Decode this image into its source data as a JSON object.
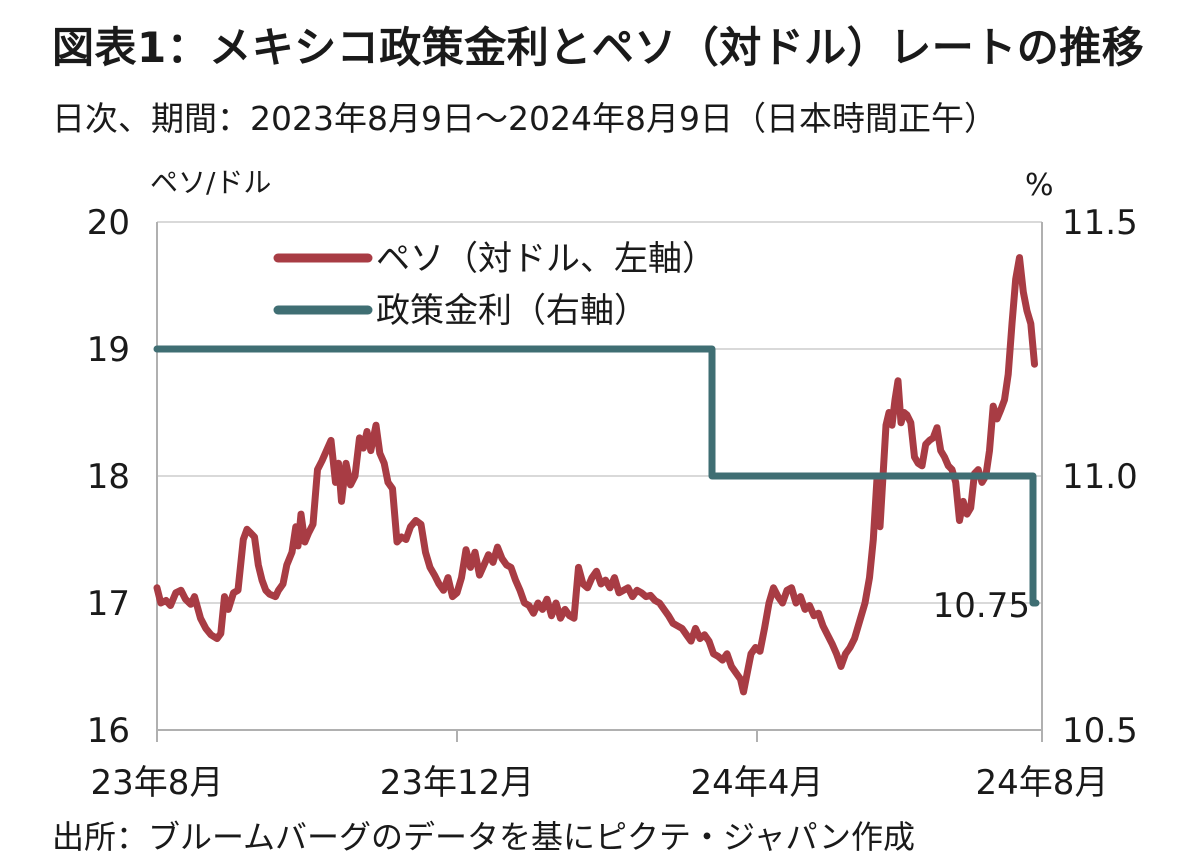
{
  "header": {
    "title": "図表1：メキシコ政策金利とペソ（対ドル）レートの推移",
    "subtitle": "日次、期間：2023年8月9日～2024年8月9日（日本時間正午）"
  },
  "footer": {
    "source": "出所：ブルームバーグのデータを基にピクテ・ジャパン作成"
  },
  "colors": {
    "peso": "#a83c44",
    "rate": "#3f6e73",
    "grid": "#d9d9d9",
    "axis": "#b0b0b0"
  },
  "chart_data": {
    "type": "line",
    "left_axis": {
      "unit": "ペソ/ドル",
      "range": [
        16,
        20
      ],
      "ticks": [
        "16",
        "17",
        "18",
        "19",
        "20"
      ]
    },
    "right_axis": {
      "unit": "%",
      "range": [
        10.5,
        11.5
      ],
      "ticks": [
        "10.5",
        "11.0",
        "11.5"
      ]
    },
    "x_axis": {
      "ticks": [
        "23年8月",
        "23年12月",
        "24年4月",
        "24年8月"
      ]
    },
    "legend": {
      "position": "top-left",
      "entries": [
        "ペソ（対ドル、左軸）",
        "政策金利（右軸）"
      ]
    },
    "grid": true,
    "annotations": [
      "10.75"
    ],
    "series": [
      {
        "name": "ペソ（対ドル、左軸）",
        "axis": "left",
        "x_unit": "months from 2023年8月9日",
        "points": [
          [
            0.0,
            17.12
          ],
          [
            0.05,
            17.0
          ],
          [
            0.12,
            17.02
          ],
          [
            0.18,
            16.98
          ],
          [
            0.25,
            17.08
          ],
          [
            0.32,
            17.1
          ],
          [
            0.38,
            17.03
          ],
          [
            0.45,
            16.99
          ],
          [
            0.5,
            17.05
          ],
          [
            0.58,
            16.88
          ],
          [
            0.65,
            16.8
          ],
          [
            0.72,
            16.75
          ],
          [
            0.8,
            16.72
          ],
          [
            0.85,
            16.76
          ],
          [
            0.9,
            17.05
          ],
          [
            0.95,
            16.95
          ],
          [
            1.02,
            17.08
          ],
          [
            1.08,
            17.1
          ],
          [
            1.15,
            17.5
          ],
          [
            1.2,
            17.58
          ],
          [
            1.25,
            17.55
          ],
          [
            1.3,
            17.52
          ],
          [
            1.35,
            17.3
          ],
          [
            1.4,
            17.18
          ],
          [
            1.45,
            17.1
          ],
          [
            1.5,
            17.07
          ],
          [
            1.58,
            17.05
          ],
          [
            1.62,
            17.1
          ],
          [
            1.68,
            17.15
          ],
          [
            1.73,
            17.3
          ],
          [
            1.8,
            17.4
          ],
          [
            1.85,
            17.6
          ],
          [
            1.88,
            17.45
          ],
          [
            1.92,
            17.7
          ],
          [
            1.97,
            17.48
          ],
          [
            2.02,
            17.55
          ],
          [
            2.08,
            17.62
          ],
          [
            2.14,
            18.05
          ],
          [
            2.2,
            18.12
          ],
          [
            2.26,
            18.2
          ],
          [
            2.32,
            18.28
          ],
          [
            2.38,
            17.95
          ],
          [
            2.42,
            18.1
          ],
          [
            2.46,
            17.8
          ],
          [
            2.52,
            18.1
          ],
          [
            2.58,
            17.93
          ],
          [
            2.64,
            18.0
          ],
          [
            2.7,
            18.3
          ],
          [
            2.75,
            18.22
          ],
          [
            2.8,
            18.35
          ],
          [
            2.85,
            18.2
          ],
          [
            2.92,
            18.4
          ],
          [
            2.97,
            18.18
          ],
          [
            3.03,
            18.1
          ],
          [
            3.08,
            17.95
          ],
          [
            3.14,
            17.9
          ],
          [
            3.2,
            17.48
          ],
          [
            3.26,
            17.52
          ],
          [
            3.32,
            17.5
          ],
          [
            3.38,
            17.6
          ],
          [
            3.45,
            17.65
          ],
          [
            3.52,
            17.62
          ],
          [
            3.58,
            17.4
          ],
          [
            3.64,
            17.28
          ],
          [
            3.7,
            17.22
          ],
          [
            3.76,
            17.15
          ],
          [
            3.82,
            17.1
          ],
          [
            3.88,
            17.2
          ],
          [
            3.94,
            17.05
          ],
          [
            4.0,
            17.08
          ],
          [
            4.06,
            17.2
          ],
          [
            4.12,
            17.42
          ],
          [
            4.18,
            17.28
          ],
          [
            4.24,
            17.4
          ],
          [
            4.3,
            17.22
          ],
          [
            4.36,
            17.3
          ],
          [
            4.42,
            17.38
          ],
          [
            4.48,
            17.32
          ],
          [
            4.54,
            17.44
          ],
          [
            4.6,
            17.35
          ],
          [
            4.66,
            17.3
          ],
          [
            4.72,
            17.28
          ],
          [
            4.78,
            17.18
          ],
          [
            4.84,
            17.1
          ],
          [
            4.9,
            17.0
          ],
          [
            4.96,
            16.98
          ],
          [
            5.02,
            16.92
          ],
          [
            5.08,
            17.0
          ],
          [
            5.14,
            16.95
          ],
          [
            5.2,
            17.03
          ],
          [
            5.26,
            16.9
          ],
          [
            5.32,
            17.0
          ],
          [
            5.38,
            16.88
          ],
          [
            5.44,
            16.95
          ],
          [
            5.5,
            16.9
          ],
          [
            5.56,
            16.88
          ],
          [
            5.62,
            17.28
          ],
          [
            5.68,
            17.15
          ],
          [
            5.74,
            17.12
          ],
          [
            5.8,
            17.2
          ],
          [
            5.86,
            17.25
          ],
          [
            5.92,
            17.15
          ],
          [
            5.98,
            17.18
          ],
          [
            6.04,
            17.12
          ],
          [
            6.1,
            17.2
          ],
          [
            6.16,
            17.08
          ],
          [
            6.22,
            17.1
          ],
          [
            6.28,
            17.12
          ],
          [
            6.34,
            17.05
          ],
          [
            6.4,
            17.1
          ],
          [
            6.46,
            17.08
          ],
          [
            6.52,
            17.05
          ],
          [
            6.58,
            17.06
          ],
          [
            6.64,
            17.02
          ],
          [
            6.7,
            17.0
          ],
          [
            6.76,
            16.95
          ],
          [
            6.82,
            16.9
          ],
          [
            6.88,
            16.84
          ],
          [
            6.94,
            16.82
          ],
          [
            7.0,
            16.8
          ],
          [
            7.06,
            16.75
          ],
          [
            7.12,
            16.7
          ],
          [
            7.18,
            16.8
          ],
          [
            7.24,
            16.72
          ],
          [
            7.3,
            16.75
          ],
          [
            7.36,
            16.7
          ],
          [
            7.42,
            16.6
          ],
          [
            7.48,
            16.58
          ],
          [
            7.54,
            16.55
          ],
          [
            7.6,
            16.6
          ],
          [
            7.66,
            16.5
          ],
          [
            7.72,
            16.45
          ],
          [
            7.78,
            16.4
          ],
          [
            7.82,
            16.3
          ],
          [
            7.86,
            16.42
          ],
          [
            7.92,
            16.6
          ],
          [
            7.98,
            16.65
          ],
          [
            8.04,
            16.62
          ],
          [
            8.1,
            16.8
          ],
          [
            8.16,
            17.0
          ],
          [
            8.22,
            17.12
          ],
          [
            8.28,
            17.05
          ],
          [
            8.34,
            17.0
          ],
          [
            8.4,
            17.1
          ],
          [
            8.46,
            17.12
          ],
          [
            8.52,
            17.0
          ],
          [
            8.58,
            17.05
          ],
          [
            8.64,
            16.95
          ],
          [
            8.7,
            16.98
          ],
          [
            8.76,
            16.9
          ],
          [
            8.82,
            16.92
          ],
          [
            8.88,
            16.82
          ],
          [
            8.94,
            16.75
          ],
          [
            9.0,
            16.68
          ],
          [
            9.06,
            16.6
          ],
          [
            9.12,
            16.5
          ],
          [
            9.18,
            16.6
          ],
          [
            9.24,
            16.65
          ],
          [
            9.3,
            16.72
          ],
          [
            9.38,
            16.88
          ],
          [
            9.44,
            17.0
          ],
          [
            9.5,
            17.2
          ],
          [
            9.55,
            17.5
          ],
          [
            9.6,
            17.98
          ],
          [
            9.64,
            17.6
          ],
          [
            9.68,
            18.0
          ],
          [
            9.72,
            18.4
          ],
          [
            9.76,
            18.5
          ],
          [
            9.8,
            18.4
          ],
          [
            9.84,
            18.6
          ],
          [
            9.88,
            18.75
          ],
          [
            9.92,
            18.42
          ],
          [
            9.96,
            18.5
          ],
          [
            10.0,
            18.48
          ],
          [
            10.05,
            18.42
          ],
          [
            10.1,
            18.15
          ],
          [
            10.15,
            18.1
          ],
          [
            10.2,
            18.08
          ],
          [
            10.25,
            18.25
          ],
          [
            10.3,
            18.28
          ],
          [
            10.35,
            18.3
          ],
          [
            10.4,
            18.38
          ],
          [
            10.45,
            18.2
          ],
          [
            10.5,
            18.15
          ],
          [
            10.55,
            18.08
          ],
          [
            10.6,
            18.05
          ],
          [
            10.65,
            17.95
          ],
          [
            10.7,
            17.65
          ],
          [
            10.75,
            17.8
          ],
          [
            10.8,
            17.7
          ],
          [
            10.85,
            17.75
          ],
          [
            10.9,
            18.02
          ],
          [
            10.95,
            18.05
          ],
          [
            11.0,
            17.95
          ],
          [
            11.05,
            18.0
          ],
          [
            11.1,
            18.2
          ],
          [
            11.15,
            18.55
          ],
          [
            11.2,
            18.45
          ],
          [
            11.25,
            18.52
          ],
          [
            11.3,
            18.6
          ],
          [
            11.35,
            18.8
          ],
          [
            11.4,
            19.2
          ],
          [
            11.45,
            19.55
          ],
          [
            11.5,
            19.72
          ],
          [
            11.55,
            19.45
          ],
          [
            11.6,
            19.3
          ],
          [
            11.65,
            19.2
          ],
          [
            11.7,
            18.88
          ]
        ]
      },
      {
        "name": "政策金利（右軸）",
        "axis": "right",
        "x_unit": "months from 2023年8月9日",
        "points": [
          [
            0.0,
            11.25
          ],
          [
            7.4,
            11.25
          ],
          [
            7.4,
            11.0
          ],
          [
            11.68,
            11.0
          ],
          [
            11.68,
            10.75
          ],
          [
            11.72,
            10.75
          ]
        ]
      }
    ]
  }
}
